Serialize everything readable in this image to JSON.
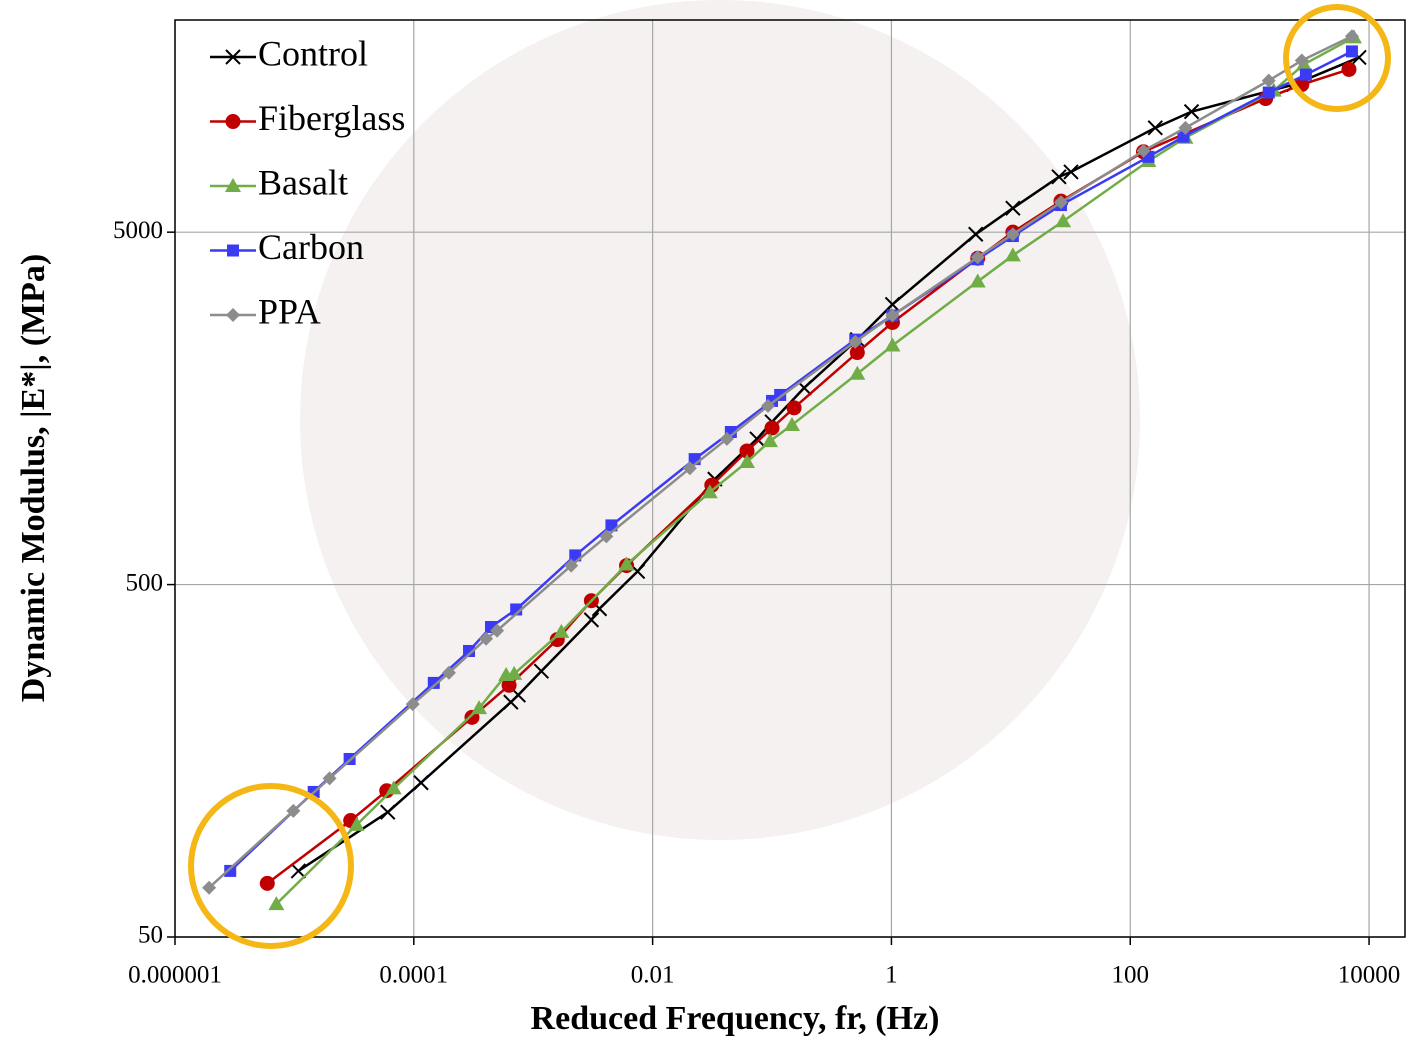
{
  "chart_data": {
    "type": "line",
    "x_label": "Reduced Frequency, fr, (Hz)",
    "y_label": "Dynamic Modulus, |E*|, (MPa)",
    "log_x": true,
    "log_y": true,
    "grid": true,
    "legend": "upper left",
    "xlim": [
      1e-06,
      20000
    ],
    "xticks": [
      1e-06,
      0.0001,
      0.01,
      1,
      100,
      10000
    ],
    "ylim": [
      50,
      20000
    ],
    "yticks": [
      50,
      500,
      5000
    ],
    "series": [
      {
        "name": "Control",
        "color": "#000000",
        "marker": "x",
        "x": [
          1.08e-05,
          6.05e-05,
          0.000115,
          0.00065,
          0.00075,
          0.00117,
          0.00307,
          0.00359,
          0.00748,
          0.0332,
          0.0748,
          0.1,
          0.186,
          0.518,
          1.02,
          5.08,
          10.4,
          25.3,
          31.9,
          162,
          326,
          2344,
          8240
        ],
        "values": [
          77,
          113,
          137,
          232,
          243,
          284,
          397,
          427,
          545,
          996,
          1295,
          1448,
          1808,
          2478,
          3119,
          4932,
          5848,
          7178,
          7413,
          9886,
          10990,
          13120,
          15660
        ]
      },
      {
        "name": "Fiberglass",
        "color": "#c00000",
        "marker": "circle",
        "x": [
          5.93e-06,
          2.96e-05,
          5.93e-05,
          0.000307,
          0.000628,
          0.00159,
          0.00307,
          0.00605,
          0.0313,
          0.0617,
          0.1,
          0.153,
          0.518,
          1.02,
          5.28,
          10.4,
          26.3,
          129,
          1361,
          2735,
          6790
        ],
        "values": [
          71,
          107,
          130,
          210,
          259,
          349,
          450,
          566,
          957,
          1197,
          1391,
          1587,
          2277,
          2772,
          4217,
          5000,
          6124,
          8455,
          11970,
          13120,
          14480
        ]
      },
      {
        "name": "Basalt",
        "color": "#70ad47",
        "marker": "triangle",
        "x": [
          7.06e-06,
          3.32e-05,
          6.79e-05,
          0.000352,
          0.000593,
          0.000692,
          0.00172,
          0.00605,
          0.0301,
          0.0617,
          0.0962,
          0.147,
          0.518,
          1.02,
          5.28,
          10.4,
          27.4,
          142,
          290,
          1592,
          2844,
          7480
        ],
        "values": [
          62,
          104,
          132,
          223,
          277,
          279,
          367,
          570,
          914,
          1114,
          1277,
          1419,
          1983,
          2384,
          3622,
          4295,
          5370,
          7960,
          9270,
          12610,
          14960,
          17860
        ]
      },
      {
        "name": "Carbon",
        "color": "#3b3bf5",
        "marker": "square",
        "x": [
          2.9e-06,
          1.45e-05,
          2.9e-05,
          0.000147,
          0.00029,
          0.000443,
          0.00072,
          0.00225,
          0.00452,
          0.0225,
          0.0452,
          0.1,
          0.117,
          0.498,
          1.02,
          5.28,
          10.4,
          26.3,
          142,
          279,
          1445,
          2958,
          7190
        ],
        "values": [
          77,
          129,
          160,
          263,
          324,
          379,
          425,
          605,
          736,
          1135,
          1355,
          1660,
          1726,
          2478,
          2902,
          4190,
          4875,
          5970,
          8180,
          9330,
          12450,
          14000,
          16290
        ]
      },
      {
        "name": "PPA",
        "color": "#8c8c8c",
        "marker": "diamond",
        "x": [
          1.93e-06,
          9.8e-06,
          1.97e-05,
          9.8e-05,
          0.000197,
          0.000403,
          0.000498,
          0.00208,
          0.0041,
          0.0205,
          0.0419,
          0.0925,
          0.498,
          1.02,
          5.28,
          10.4,
          26.3,
          129,
          290,
          1445,
          2735,
          7190
        ],
        "values": [
          69,
          114,
          141,
          229,
          281,
          351,
          370,
          566,
          685,
          1069,
          1295,
          1607,
          2443,
          2902,
          4245,
          4932,
          6080,
          8510,
          9886,
          13460,
          15350,
          17990
        ]
      }
    ]
  }
}
